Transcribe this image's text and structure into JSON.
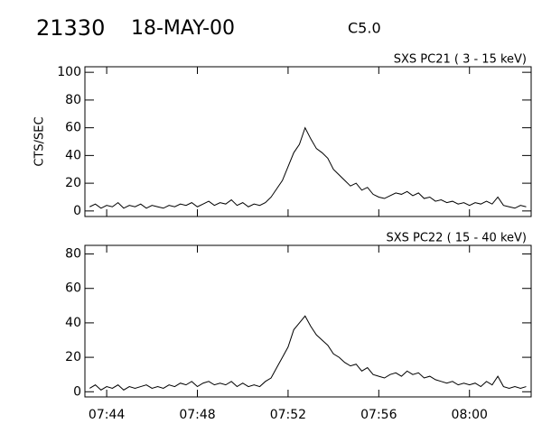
{
  "header": {
    "id": "21330",
    "date": "18-MAY-00",
    "class": "C5.0"
  },
  "chart_data": [
    {
      "type": "line",
      "subtitle": "SXS PC21  (  3 - 15 keV)",
      "y_label": "CTS/SEC",
      "color": "#000000",
      "xlim": [
        463.04,
        482.72
      ],
      "xticks": [
        464,
        468,
        472,
        476,
        480
      ],
      "ylim": [
        -4,
        104
      ],
      "yticks": [
        0,
        20,
        40,
        60,
        80,
        100
      ],
      "x": [
        463.25,
        463.5,
        463.75,
        464,
        464.25,
        464.5,
        464.75,
        465,
        465.25,
        465.5,
        465.75,
        466,
        466.25,
        466.5,
        466.75,
        467,
        467.25,
        467.5,
        467.75,
        468,
        468.25,
        468.5,
        468.75,
        469,
        469.25,
        469.5,
        469.75,
        470,
        470.25,
        470.5,
        470.75,
        471,
        471.25,
        471.5,
        471.75,
        472,
        472.25,
        472.5,
        472.75,
        473,
        473.25,
        473.5,
        473.75,
        474,
        474.25,
        474.5,
        474.75,
        475,
        475.25,
        475.5,
        475.75,
        476,
        476.25,
        476.5,
        476.75,
        477,
        477.25,
        477.5,
        477.75,
        478,
        478.25,
        478.5,
        478.75,
        479,
        479.25,
        479.5,
        479.75,
        480,
        480.25,
        480.5,
        480.75,
        481,
        481.25,
        481.5,
        481.75,
        482,
        482.25,
        482.5
      ],
      "values": [
        3,
        5,
        2,
        4,
        3,
        6,
        2,
        4,
        3,
        5,
        2,
        4,
        3,
        2,
        4,
        3,
        5,
        4,
        6,
        3,
        5,
        7,
        4,
        6,
        5,
        8,
        4,
        6,
        3,
        5,
        4,
        6,
        10,
        16,
        22,
        32,
        42,
        48,
        60,
        52,
        45,
        42,
        38,
        30,
        26,
        22,
        18,
        20,
        15,
        17,
        12,
        10,
        9,
        11,
        13,
        12,
        14,
        11,
        13,
        9,
        10,
        7,
        8,
        6,
        7,
        5,
        6,
        4,
        6,
        5,
        7,
        5,
        10,
        4,
        3,
        2,
        4,
        3
      ]
    },
    {
      "type": "line",
      "subtitle": "SXS PC22  ( 15 - 40 keV)",
      "color": "#000000",
      "xlim": [
        463.04,
        482.72
      ],
      "xticks": [
        {
          "value": 464,
          "label": "07:44"
        },
        {
          "value": 468,
          "label": "07:48"
        },
        {
          "value": 472,
          "label": "07:52"
        },
        {
          "value": 476,
          "label": "07:56"
        },
        {
          "value": 480,
          "label": "08:00"
        }
      ],
      "ylim": [
        -3,
        85
      ],
      "yticks": [
        0,
        20,
        40,
        60,
        80
      ],
      "x": [
        463.25,
        463.5,
        463.75,
        464,
        464.25,
        464.5,
        464.75,
        465,
        465.25,
        465.5,
        465.75,
        466,
        466.25,
        466.5,
        466.75,
        467,
        467.25,
        467.5,
        467.75,
        468,
        468.25,
        468.5,
        468.75,
        469,
        469.25,
        469.5,
        469.75,
        470,
        470.25,
        470.5,
        470.75,
        471,
        471.25,
        471.5,
        471.75,
        472,
        472.25,
        472.5,
        472.75,
        473,
        473.25,
        473.5,
        473.75,
        474,
        474.25,
        474.5,
        474.75,
        475,
        475.25,
        475.5,
        475.75,
        476,
        476.25,
        476.5,
        476.75,
        477,
        477.25,
        477.5,
        477.75,
        478,
        478.25,
        478.5,
        478.75,
        479,
        479.25,
        479.5,
        479.75,
        480,
        480.25,
        480.5,
        480.75,
        481,
        481.25,
        481.5,
        481.75,
        482,
        482.25,
        482.5
      ],
      "values": [
        2,
        4,
        1,
        3,
        2,
        4,
        1,
        3,
        2,
        3,
        4,
        2,
        3,
        2,
        4,
        3,
        5,
        4,
        6,
        3,
        5,
        6,
        4,
        5,
        4,
        6,
        3,
        5,
        3,
        4,
        3,
        6,
        8,
        14,
        20,
        26,
        36,
        40,
        44,
        38,
        33,
        30,
        27,
        22,
        20,
        17,
        15,
        16,
        12,
        14,
        10,
        9,
        8,
        10,
        11,
        9,
        12,
        10,
        11,
        8,
        9,
        7,
        6,
        5,
        6,
        4,
        5,
        4,
        5,
        3,
        6,
        4,
        9,
        3,
        2,
        3,
        2,
        3
      ]
    }
  ]
}
